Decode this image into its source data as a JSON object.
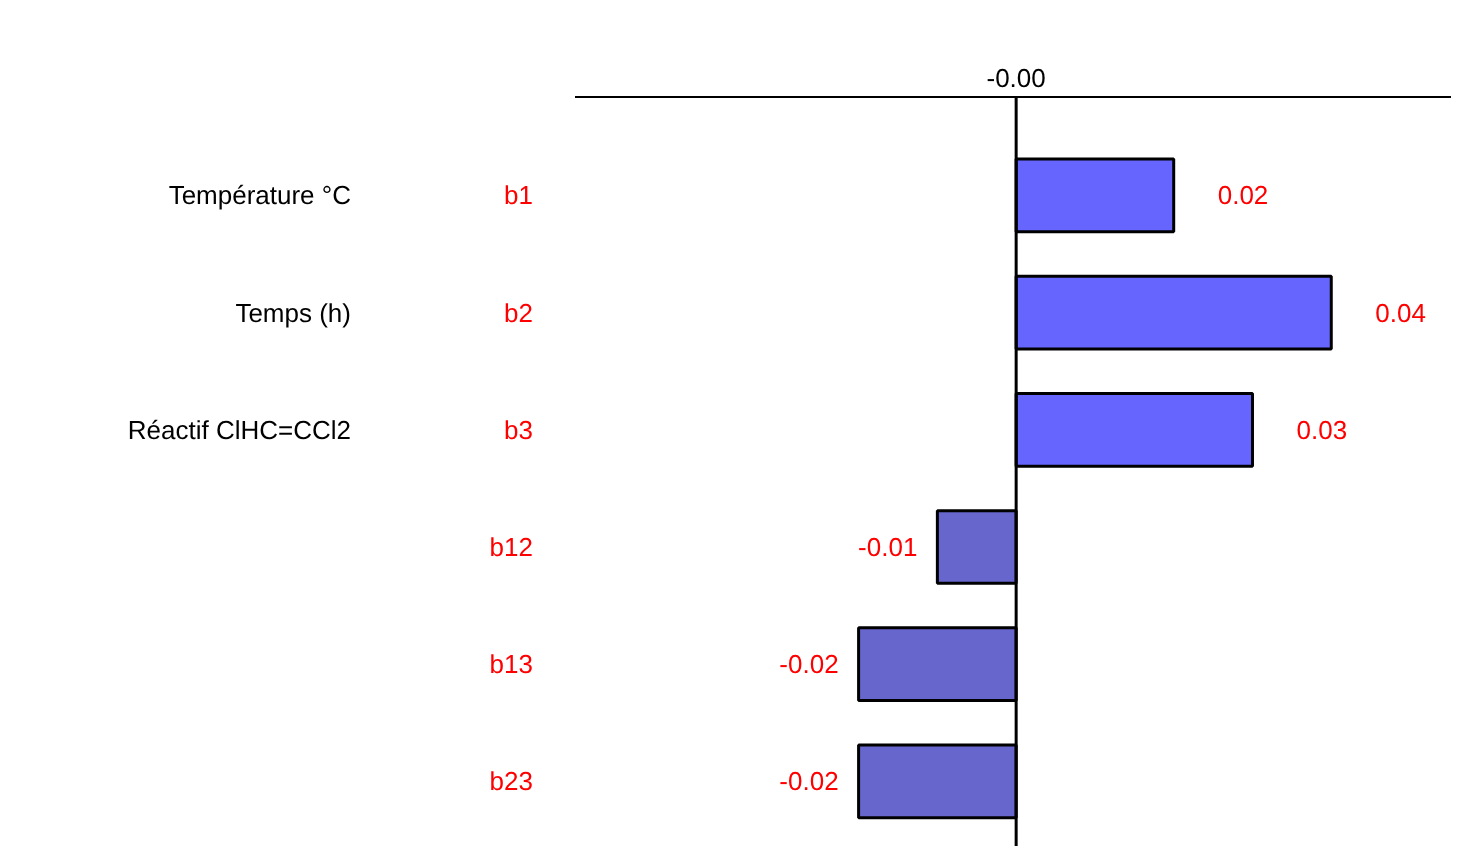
{
  "chart_data": {
    "type": "bar",
    "orientation": "horizontal",
    "categories": [
      "b1",
      "b2",
      "b3",
      "b12",
      "b13",
      "b23"
    ],
    "values": [
      0.02,
      0.04,
      0.03,
      -0.01,
      -0.02,
      -0.02
    ],
    "colors": [
      "#6666ff",
      "#6666ff",
      "#6666ff",
      "#6666cc",
      "#6666cc",
      "#6666cc"
    ],
    "data_labels": true,
    "ref_lines": [
      {
        "axis": "x",
        "value": 0,
        "label": "-0.00"
      }
    ],
    "annotations": [
      "Température °C",
      "Temps (h)",
      "Réactif ClHC=CCl2"
    ],
    "grid": false
  }
}
